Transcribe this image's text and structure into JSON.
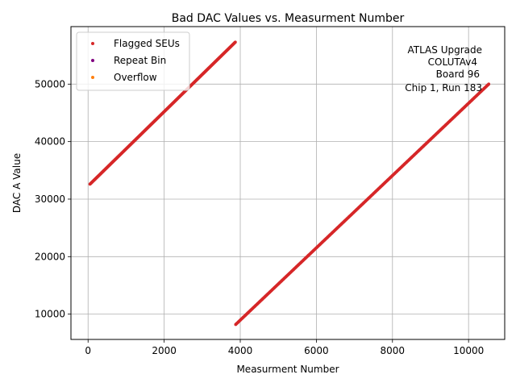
{
  "chart_data": {
    "type": "scatter",
    "title": "Bad DAC Values vs. Measurment Number",
    "xlabel": "Measurment Number",
    "ylabel": "DAC A Value",
    "xlim": [
      -450,
      10950
    ],
    "ylim": [
      5600,
      60000
    ],
    "xticks": [
      0,
      2000,
      4000,
      6000,
      8000,
      10000
    ],
    "yticks": [
      10000,
      20000,
      30000,
      40000,
      50000
    ],
    "xtick_labels": [
      "0",
      "2000",
      "4000",
      "6000",
      "8000",
      "10000"
    ],
    "ytick_labels": [
      "10000",
      "20000",
      "30000",
      "40000",
      "50000"
    ],
    "grid": true,
    "legend_position": "upper-left",
    "series": [
      {
        "name": "Flagged SEUs",
        "color": "#d62728",
        "segments": [
          {
            "x_start": 50,
            "x_end": 3870,
            "y_start": 32600,
            "y_end": 57300
          },
          {
            "x_start": 3880,
            "x_end": 10530,
            "y_start": 8200,
            "y_end": 50000
          }
        ]
      },
      {
        "name": "Repeat Bin",
        "color": "#800080",
        "segments": []
      },
      {
        "name": "Overflow",
        "color": "#ff7f0e",
        "segments": []
      }
    ],
    "annotation": [
      "ATLAS Upgrade",
      "COLUTAv4",
      "Board 96",
      "Chip 1, Run 183"
    ]
  }
}
